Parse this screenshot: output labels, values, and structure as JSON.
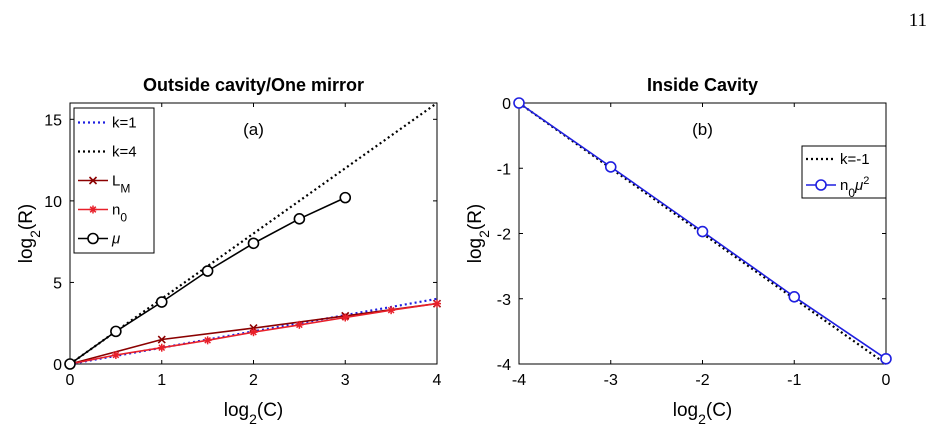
{
  "page_number": "11",
  "chart_data": [
    {
      "type": "line",
      "title": "Outside cavity/One mirror",
      "panel_label": "(a)",
      "xlabel": {
        "base": "log",
        "sub": "2",
        "rest": "(C)"
      },
      "ylabel": {
        "base": "log",
        "sub": "2",
        "rest": "(R)"
      },
      "xlim": [
        0,
        4
      ],
      "ylim": [
        0,
        16
      ],
      "xticks": [
        0,
        1,
        2,
        3,
        4
      ],
      "yticks": [
        0,
        5,
        10,
        15
      ],
      "legend_position": "top-left",
      "series": [
        {
          "key": "k1",
          "legend_base": "k=1",
          "legend_sub": "",
          "legend_sup": "",
          "style": "dotted",
          "color": "#1f1fe0",
          "marker": "none",
          "x": [
            0,
            4
          ],
          "y": [
            0,
            4
          ]
        },
        {
          "key": "k4",
          "legend_base": "k=4",
          "legend_sub": "",
          "legend_sup": "",
          "style": "dotted",
          "color": "#000000",
          "marker": "none",
          "x": [
            0,
            4
          ],
          "y": [
            0,
            16
          ]
        },
        {
          "key": "LM",
          "legend_base": "L",
          "legend_sub": "M",
          "legend_sup": "",
          "style": "solid",
          "color": "#8b0000",
          "marker": "x",
          "x": [
            0,
            1,
            2,
            3,
            4
          ],
          "y": [
            0,
            1.5,
            2.2,
            2.95,
            3.7
          ]
        },
        {
          "key": "n0",
          "legend_base": "n",
          "legend_sub": "0",
          "legend_sup": "",
          "style": "solid",
          "color": "#e8202a",
          "marker": "star",
          "x": [
            0,
            0.5,
            1,
            1.5,
            2,
            2.5,
            3,
            3.5,
            4
          ],
          "y": [
            0,
            0.55,
            1.0,
            1.45,
            1.95,
            2.4,
            2.85,
            3.3,
            3.7
          ]
        },
        {
          "key": "mu",
          "legend_base": "μ",
          "legend_sub": "",
          "legend_sup": "",
          "style": "solid",
          "color": "#000000",
          "marker": "circle",
          "x": [
            0,
            0.5,
            1,
            1.5,
            2,
            2.5,
            3
          ],
          "y": [
            0,
            2.0,
            3.8,
            5.7,
            7.4,
            8.9,
            10.2
          ]
        }
      ]
    },
    {
      "type": "line",
      "title": "Inside Cavity",
      "panel_label": "(b)",
      "xlabel": {
        "base": "log",
        "sub": "2",
        "rest": "(C)"
      },
      "ylabel": {
        "base": "log",
        "sub": "2",
        "rest": "(R)"
      },
      "xlim": [
        -4,
        0
      ],
      "ylim": [
        -4,
        0
      ],
      "xticks": [
        -4,
        -3,
        -2,
        -1,
        0
      ],
      "yticks": [
        0,
        -1,
        -2,
        -3,
        -4
      ],
      "legend_position": "top-right",
      "series": [
        {
          "key": "km1",
          "legend_base": "k=-1",
          "legend_sub": "",
          "legend_sup": "",
          "style": "dotted",
          "color": "#000000",
          "marker": "none",
          "x": [
            -4,
            0
          ],
          "y": [
            0,
            -4
          ]
        },
        {
          "key": "n0mu2",
          "legend_base": "n",
          "legend_sub": "0",
          "legend_sup": "2",
          "legend_mid": "μ",
          "style": "solid",
          "color": "#1f1fe0",
          "marker": "circle",
          "x": [
            -4,
            -3,
            -2,
            -1,
            0
          ],
          "y": [
            0,
            -0.98,
            -1.97,
            -2.97,
            -3.92
          ]
        }
      ]
    }
  ]
}
